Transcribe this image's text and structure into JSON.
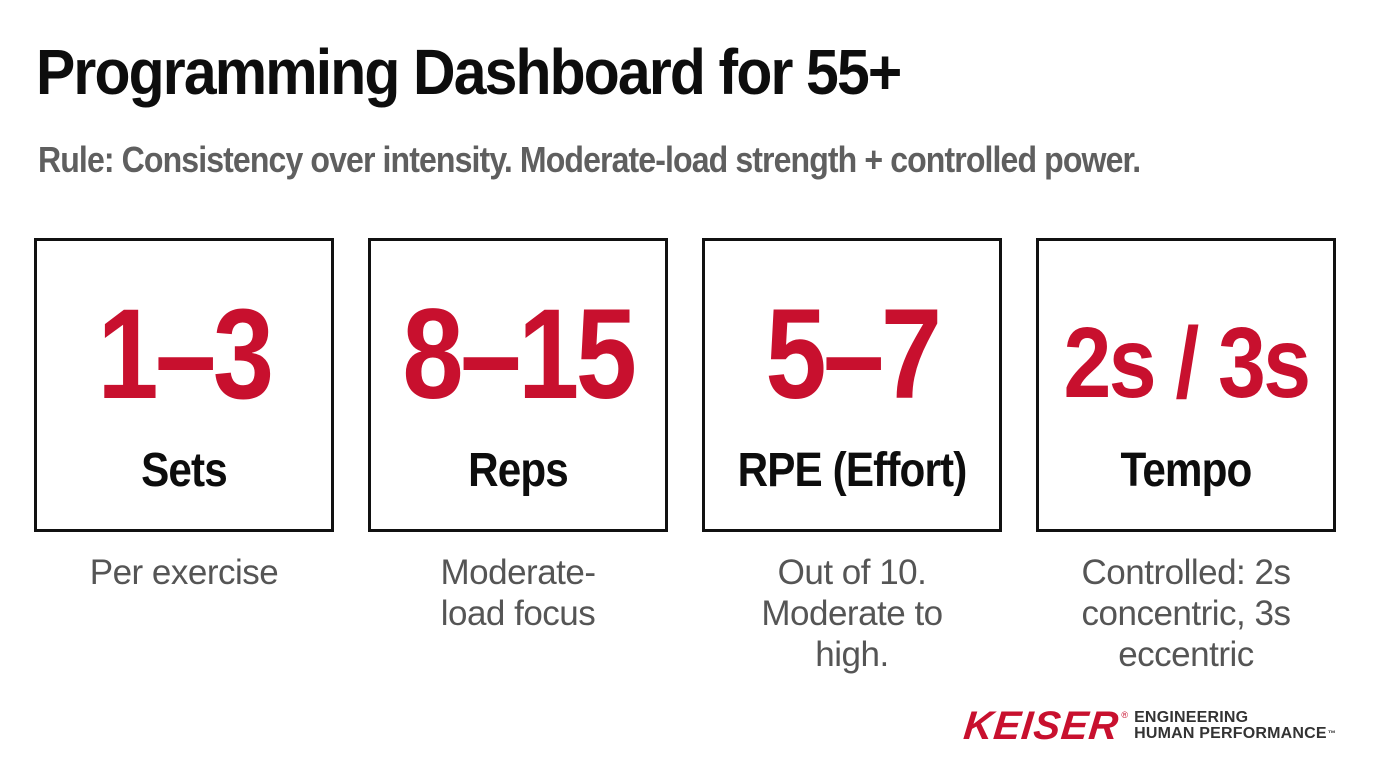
{
  "header": {
    "title": "Programming Dashboard for 55+",
    "subtitle": "Rule: Consistency over intensity. Moderate-load strength + controlled power."
  },
  "cards": [
    {
      "value": "1–3",
      "label": "Sets",
      "description": "Per exercise"
    },
    {
      "value": "8–15",
      "label": "Reps",
      "description": "Moderate-load focus"
    },
    {
      "value": "5–7",
      "label": "RPE (Effort)",
      "description": "Out of 10. Moderate to high."
    },
    {
      "value": "2s / 3s",
      "label": "Tempo",
      "description": "Controlled: 2s concentric, 3s eccentric"
    }
  ],
  "brand": {
    "name": "KEISER",
    "registered": "®",
    "tagline_line1": "ENGINEERING",
    "tagline_line2": "HUMAN PERFORMANCE",
    "trademark": "™"
  },
  "colors": {
    "accent_red": "#c8102e",
    "title_text": "#0d0d0d",
    "subtitle_text": "#5f5f5f",
    "description_text": "#555555",
    "card_border": "#111111"
  }
}
